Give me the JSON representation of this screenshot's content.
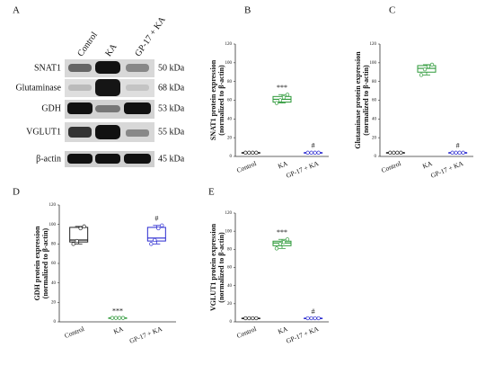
{
  "blot": {
    "panel": "A",
    "lanes": [
      "Control",
      "KA",
      "GP-17 + KA"
    ],
    "rows": [
      {
        "protein": "SNAT1",
        "size": "50 kDa"
      },
      {
        "protein": "Glutaminase",
        "size": "68 kDa"
      },
      {
        "protein": "GDH",
        "size": "53 kDa"
      },
      {
        "protein": "VGLUT1",
        "size": "55 kDa"
      },
      {
        "protein": "β-actin",
        "size": "45 kDa"
      }
    ]
  },
  "chart_data": [
    {
      "type": "box",
      "panel": "B",
      "ylabel": [
        "SNAT1 protein expression",
        "(normalized to β-actin)"
      ],
      "categories": [
        "Control",
        "KA",
        "GP-17 + KA"
      ],
      "colors": [
        "#222222",
        "#2e9a3a",
        "#2a2ad0"
      ],
      "ylim": [
        0,
        120
      ],
      "yticks": [
        0,
        20,
        40,
        60,
        80,
        100,
        120
      ],
      "boxes": [
        {
          "min": 4,
          "q1": 4,
          "median": 4,
          "q3": 4,
          "max": 4
        },
        {
          "min": 57,
          "q1": 58,
          "median": 61,
          "q3": 64,
          "max": 66
        },
        {
          "min": 4,
          "q1": 4,
          "median": 4,
          "q3": 4,
          "max": 4
        }
      ],
      "points": [
        [
          4,
          4,
          4,
          4
        ],
        [
          57,
          60,
          63,
          66
        ],
        [
          4,
          4,
          4,
          4
        ]
      ],
      "annotations": [
        {
          "text": "***",
          "index": 1
        },
        {
          "text": "#",
          "index": 2
        }
      ]
    },
    {
      "type": "box",
      "panel": "C",
      "ylabel": [
        "Glutaminase protein expression",
        "(normalized to β-actin)"
      ],
      "categories": [
        "Control",
        "KA",
        "GP-17 + KA"
      ],
      "colors": [
        "#222222",
        "#2e9a3a",
        "#2a2ad0"
      ],
      "ylim": [
        0,
        120
      ],
      "yticks": [
        0,
        20,
        40,
        60,
        80,
        100,
        120
      ],
      "boxes": [
        {
          "min": 4,
          "q1": 4,
          "median": 4,
          "q3": 4,
          "max": 4
        },
        {
          "min": 87,
          "q1": 90,
          "median": 94,
          "q3": 97,
          "max": 98
        },
        {
          "min": 4,
          "q1": 4,
          "median": 4,
          "q3": 4,
          "max": 4
        }
      ],
      "points": [
        [
          4,
          4,
          4,
          4
        ],
        [
          87,
          93,
          96,
          98
        ],
        [
          4,
          4,
          4,
          4
        ]
      ],
      "annotations": [
        {
          "text": "#",
          "index": 2
        }
      ]
    },
    {
      "type": "box",
      "panel": "D",
      "ylabel": [
        "GDH protein expression",
        "(normalized to β-actin)"
      ],
      "categories": [
        "Control",
        "KA",
        "GP-17 + KA"
      ],
      "colors": [
        "#222222",
        "#2e9a3a",
        "#2a2ad0"
      ],
      "ylim": [
        0,
        120
      ],
      "yticks": [
        0,
        20,
        40,
        60,
        80,
        100,
        120
      ],
      "boxes": [
        {
          "min": 80,
          "q1": 82,
          "median": 84,
          "q3": 97,
          "max": 98
        },
        {
          "min": 4,
          "q1": 4,
          "median": 4,
          "q3": 4,
          "max": 4
        },
        {
          "min": 80,
          "q1": 83,
          "median": 86,
          "q3": 97,
          "max": 99
        }
      ],
      "points": [
        [
          80,
          83,
          96,
          98
        ],
        [
          4,
          4,
          4,
          4
        ],
        [
          80,
          84,
          96,
          99
        ]
      ],
      "annotations": [
        {
          "text": "***",
          "index": 1
        },
        {
          "text": "#",
          "index": 2
        }
      ]
    },
    {
      "type": "box",
      "panel": "E",
      "ylabel": [
        "VGLUT1 protein expression",
        "(normalized to β-actin)"
      ],
      "categories": [
        "Control",
        "KA",
        "GP-17 + KA"
      ],
      "colors": [
        "#222222",
        "#2e9a3a",
        "#2a2ad0"
      ],
      "ylim": [
        0,
        120
      ],
      "yticks": [
        0,
        20,
        40,
        60,
        80,
        100,
        120
      ],
      "boxes": [
        {
          "min": 4,
          "q1": 4,
          "median": 4,
          "q3": 4,
          "max": 4
        },
        {
          "min": 81,
          "q1": 84,
          "median": 87,
          "q3": 89,
          "max": 91
        },
        {
          "min": 4,
          "q1": 4,
          "median": 4,
          "q3": 4,
          "max": 4
        }
      ],
      "points": [
        [
          4,
          4,
          4,
          4
        ],
        [
          81,
          86,
          88,
          91
        ],
        [
          4,
          4,
          4,
          4
        ]
      ],
      "annotations": [
        {
          "text": "***",
          "index": 1
        },
        {
          "text": "#",
          "index": 2
        }
      ]
    }
  ]
}
